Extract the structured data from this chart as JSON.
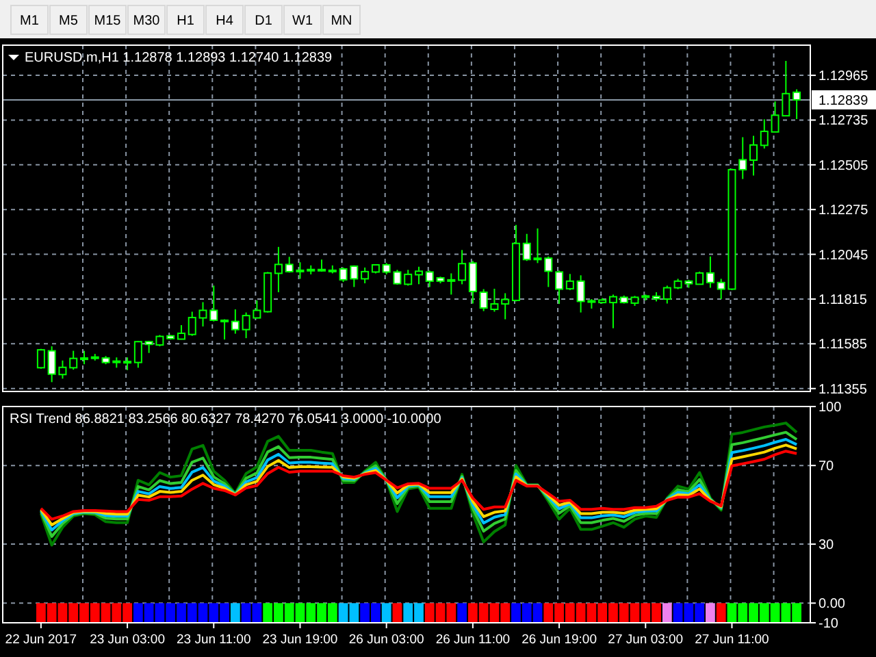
{
  "chart_data": [
    {
      "type": "other",
      "annotations": [
        "M1",
        "M5",
        "M15",
        "M30",
        "H1",
        "H4",
        "D1",
        "W1",
        "MN"
      ]
    },
    {
      "type": "candlestick",
      "title": "EURUSD.m,H1 1.12878 1.12893 1.12740 1.12839",
      "color": "#00ff00",
      "ohlc": [
        [
          1.11462,
          1.11559,
          1.11457,
          1.11554
        ],
        [
          1.11549,
          1.11572,
          1.11388,
          1.11429
        ],
        [
          1.11427,
          1.11499,
          1.11406,
          1.11464
        ],
        [
          1.11462,
          1.11549,
          1.11452,
          1.1151
        ],
        [
          1.11508,
          1.11549,
          1.1148,
          1.11512
        ],
        [
          1.11515,
          1.11533,
          1.11499,
          1.11517
        ],
        [
          1.11512,
          1.11522,
          1.1148,
          1.11489
        ],
        [
          1.11494,
          1.11515,
          1.11462,
          1.11496
        ],
        [
          1.11489,
          1.11515,
          1.1145,
          1.11494
        ],
        [
          1.11489,
          1.116,
          1.11462,
          1.11596
        ],
        [
          1.11596,
          1.116,
          1.11538,
          1.11582
        ],
        [
          1.11579,
          1.1163,
          1.11572,
          1.11623
        ],
        [
          1.11626,
          1.1163,
          1.11607,
          1.11612
        ],
        [
          1.11609,
          1.11681,
          1.11607,
          1.11639
        ],
        [
          1.11633,
          1.1175,
          1.11626,
          1.1172
        ],
        [
          1.11718,
          1.11799,
          1.11674,
          1.11757
        ],
        [
          1.11757,
          1.11884,
          1.117,
          1.11706
        ],
        [
          1.11706,
          1.11711,
          1.11607,
          1.11702
        ],
        [
          1.117,
          1.11762,
          1.11637,
          1.11658
        ],
        [
          1.11658,
          1.11746,
          1.11614,
          1.1173
        ],
        [
          1.11718,
          1.11808,
          1.11716,
          1.11757
        ],
        [
          1.1175,
          1.11954,
          1.11746,
          1.11949
        ],
        [
          1.11947,
          1.12083,
          1.1185,
          1.11993
        ],
        [
          1.11993,
          1.12032,
          1.11951,
          1.11956
        ],
        [
          1.11963,
          1.12004,
          1.11919,
          1.11958
        ],
        [
          1.11965,
          1.11988,
          1.11942,
          1.11967
        ],
        [
          1.11963,
          1.12018,
          1.11956,
          1.11967
        ],
        [
          1.11961,
          1.11988,
          1.11947,
          1.11963
        ],
        [
          1.1197,
          1.11977,
          1.11903,
          1.11914
        ],
        [
          1.11984,
          1.11988,
          1.11877,
          1.11919
        ],
        [
          1.11919,
          1.11977,
          1.11896,
          1.11956
        ],
        [
          1.11954,
          1.11993,
          1.11947,
          1.11991
        ],
        [
          1.11991,
          1.12,
          1.11942,
          1.11954
        ],
        [
          1.11954,
          1.11965,
          1.11889,
          1.11894
        ],
        [
          1.11891,
          1.11965,
          1.11884,
          1.11942
        ],
        [
          1.1194,
          1.11981,
          1.11891,
          1.11958
        ],
        [
          1.11954,
          1.11961,
          1.11877,
          1.11907
        ],
        [
          1.11924,
          1.1193,
          1.11896,
          1.11907
        ],
        [
          1.11914,
          1.11947,
          1.11838,
          1.1191
        ],
        [
          1.11912,
          1.12067,
          1.11891,
          1.11997
        ],
        [
          1.12,
          1.12011,
          1.11792,
          1.11854
        ],
        [
          1.1185,
          1.11866,
          1.11753,
          1.11769
        ],
        [
          1.11762,
          1.11868,
          1.1175,
          1.1179
        ],
        [
          1.1179,
          1.11845,
          1.11711,
          1.11813
        ],
        [
          1.11808,
          1.12196,
          1.11803,
          1.12101
        ],
        [
          1.12101,
          1.1215,
          1.12011,
          1.12018
        ],
        [
          1.12025,
          1.12178,
          1.12,
          1.12023
        ],
        [
          1.12025,
          1.12034,
          1.11877,
          1.11958
        ],
        [
          1.11954,
          1.11961,
          1.1179,
          1.11866
        ],
        [
          1.11868,
          1.11944,
          1.11861,
          1.11907
        ],
        [
          1.11907,
          1.11937,
          1.11746,
          1.11803
        ],
        [
          1.11806,
          1.11815,
          1.11766,
          1.11801
        ],
        [
          1.11797,
          1.1182,
          1.11792,
          1.1181
        ],
        [
          1.11797,
          1.11838,
          1.11665,
          1.11827
        ],
        [
          1.11824,
          1.11833,
          1.11792,
          1.11797
        ],
        [
          1.11794,
          1.11831,
          1.1178,
          1.11824
        ],
        [
          1.11827,
          1.11838,
          1.11808,
          1.11831
        ],
        [
          1.11829,
          1.1185,
          1.11803,
          1.11817
        ],
        [
          1.11815,
          1.11884,
          1.11792,
          1.11873
        ],
        [
          1.11873,
          1.11919,
          1.11866,
          1.11907
        ],
        [
          1.11907,
          1.11914,
          1.11873,
          1.11894
        ],
        [
          1.11891,
          1.11956,
          1.11889,
          1.11949
        ],
        [
          1.11949,
          1.12034,
          1.11873,
          1.119
        ],
        [
          1.119,
          1.11919,
          1.11815,
          1.11866
        ],
        [
          1.11866,
          1.12485,
          1.11861,
          1.1248
        ],
        [
          1.12531,
          1.12647,
          1.12432,
          1.1248
        ],
        [
          1.12529,
          1.12654,
          1.1245,
          1.12607
        ],
        [
          1.12605,
          1.12739,
          1.12589,
          1.12677
        ],
        [
          1.12674,
          1.12831,
          1.12674,
          1.1276
        ],
        [
          1.12757,
          1.13039,
          1.12757,
          1.12871
        ],
        [
          1.12878,
          1.12893,
          1.1274,
          1.12839
        ]
      ],
      "ylim": [
        1.1134,
        1.1312
      ],
      "yticks": [
        1.11355,
        1.11585,
        1.11815,
        1.12045,
        1.12275,
        1.12505,
        1.12735,
        1.12965
      ],
      "grid": true,
      "tick_labels": "y",
      "ref_lines": [
        {
          "axis": "y",
          "value": 1.12839,
          "label": "1.12839",
          "color": "#8c9aa8"
        }
      ]
    },
    {
      "type": "line",
      "title": "RSI Trend 86.8821 83.2566 80.6327 78.4270 76.0541 3.0000 -10.0000",
      "categories": [
        "22 Jun 2017",
        null,
        null,
        null,
        null,
        null,
        null,
        null,
        "23 Jun 03:00",
        null,
        null,
        null,
        null,
        null,
        null,
        null,
        "23 Jun 11:00",
        null,
        null,
        null,
        null,
        null,
        null,
        null,
        "23 Jun 19:00",
        null,
        null,
        null,
        null,
        null,
        null,
        null,
        "26 Jun 03:00",
        null,
        null,
        null,
        null,
        null,
        null,
        null,
        "26 Jun 11:00",
        null,
        null,
        null,
        null,
        null,
        null,
        null,
        "26 Jun 19:00",
        null,
        null,
        null,
        null,
        null,
        null,
        null,
        "27 Jun 03:00",
        null,
        null,
        null,
        null,
        null,
        null,
        null,
        "27 Jun 11:00",
        null,
        null,
        null,
        null,
        null,
        null
      ],
      "ylim": [
        -10,
        100
      ],
      "yticks": [
        100,
        70,
        30,
        {
          "value": 0,
          "label": "0.00"
        },
        -10
      ],
      "grid": true,
      "series": [
        {
          "type": "bar",
          "values": [
            -10,
            -10,
            -10,
            -10,
            -10,
            -10,
            -10,
            -10,
            -10,
            -10,
            -10,
            -10,
            -10,
            -10,
            -10,
            -10,
            -10,
            -10,
            -10,
            -10,
            -10,
            -10,
            -10,
            -10,
            -10,
            -10,
            -10,
            -10,
            -10,
            -10,
            -10,
            -10,
            -10,
            -10,
            -10,
            -10,
            -10,
            -10,
            -10,
            -10,
            -10,
            -10,
            -10,
            -10,
            -10,
            -10,
            -10,
            -10,
            -10,
            -10,
            -10,
            -10,
            -10,
            -10,
            -10,
            -10,
            -10,
            -10,
            -10,
            -10,
            -10,
            -10,
            -10,
            -10,
            -10,
            -10,
            -10,
            -10,
            -10,
            -10,
            -10
          ],
          "colors": [
            "#ff0000",
            "#ff0000",
            "#ff0000",
            "#ff0000",
            "#ff0000",
            "#ff0000",
            "#ff0000",
            "#ff0000",
            "#ff0000",
            "#0000ff",
            "#0000ff",
            "#0000ff",
            "#0000ff",
            "#0000ff",
            "#0000ff",
            "#0000ff",
            "#0000ff",
            "#0000ff",
            "#00bfff",
            "#0000ff",
            "#0000ff",
            "#00ff00",
            "#00ff00",
            "#00ff00",
            "#00ff00",
            "#00ff00",
            "#00ff00",
            "#00ff00",
            "#00bfff",
            "#00bfff",
            "#0000ff",
            "#0000ff",
            "#00bfff",
            "#ff0000",
            "#00bfff",
            "#00bfff",
            "#ff0000",
            "#ff0000",
            "#ff0000",
            "#0000ff",
            "#ff0000",
            "#ff0000",
            "#ff0000",
            "#ff0000",
            "#0000ff",
            "#0000ff",
            "#0000ff",
            "#ff0000",
            "#ff0000",
            "#ff0000",
            "#ff0000",
            "#ff0000",
            "#ff0000",
            "#ff0000",
            "#ff0000",
            "#ff0000",
            "#ff0000",
            "#ff0000",
            "#ee82ee",
            "#0000ff",
            "#0000ff",
            "#0000ff",
            "#ee82ee",
            "#ff0000",
            "#00ff00",
            "#00ff00",
            "#00ff00",
            "#00ff00",
            "#00ff00",
            "#00ff00",
            "#00ff00"
          ]
        },
        {
          "color": "#008000",
          "values": [
            45.5,
            29.5,
            38.6,
            44.3,
            45.5,
            45.0,
            41.4,
            40.9,
            40.9,
            62.5,
            60.2,
            66.4,
            64.1,
            64.8,
            78.4,
            80.2,
            67.1,
            62.5,
            55.7,
            65.9,
            69.3,
            82.3,
            84.8,
            77.7,
            77.7,
            77.7,
            76.8,
            76.1,
            61.4,
            61.4,
            67.1,
            71.6,
            62.5,
            46.6,
            58.0,
            59.1,
            48.2,
            48.2,
            48.2,
            65.5,
            45.5,
            31.1,
            36.4,
            39.8,
            70.0,
            60.2,
            60.2,
            51.8,
            42.7,
            48.2,
            37.5,
            37.5,
            39.1,
            40.9,
            38.6,
            42.7,
            44.3,
            43.6,
            53.4,
            59.5,
            58.0,
            66.4,
            53.4,
            47.3,
            85.9,
            86.8,
            88.2,
            89.6,
            90.5,
            91.6,
            86.8821
          ]
        },
        {
          "color": "#32cd32",
          "values": [
            46.4,
            33.9,
            40.5,
            45.1,
            46.0,
            45.7,
            43.2,
            42.8,
            42.8,
            59.3,
            57.6,
            62.3,
            60.8,
            61.4,
            71.7,
            73.8,
            64.2,
            60.8,
            55.5,
            63.5,
            66.2,
            76.9,
            79.6,
            74.0,
            74.2,
            74.2,
            73.6,
            73.1,
            62.5,
            62.3,
            66.6,
            69.9,
            62.5,
            50.6,
            58.9,
            59.7,
            51.6,
            51.6,
            51.6,
            64.5,
            48.1,
            36.6,
            40.5,
            42.8,
            67.5,
            60.0,
            60.0,
            53.1,
            45.7,
            49.6,
            40.9,
            40.9,
            42.1,
            43.1,
            41.6,
            44.6,
            45.7,
            45.5,
            53.0,
            57.7,
            56.6,
            62.9,
            52.9,
            48.0,
            80.6,
            81.6,
            82.9,
            84.2,
            85.6,
            86.9,
            83.2566
          ]
        },
        {
          "color": "#00bfff",
          "values": [
            47.1,
            37.2,
            41.9,
            45.6,
            46.4,
            46.2,
            44.5,
            44.2,
            44.2,
            56.8,
            55.6,
            59.3,
            58.3,
            58.8,
            66.6,
            69.0,
            62.1,
            59.5,
            55.3,
            61.7,
            63.8,
            72.8,
            75.7,
            71.3,
            71.6,
            71.6,
            71.2,
            70.9,
            63.4,
            63.0,
            66.2,
            68.6,
            62.5,
            53.6,
            59.6,
            60.1,
            54.1,
            54.1,
            54.1,
            63.8,
            50.1,
            40.7,
            43.7,
            45.1,
            65.7,
            59.8,
            59.8,
            54.1,
            48.0,
            50.6,
            43.4,
            43.4,
            44.4,
            44.8,
            43.9,
            46.1,
            46.8,
            46.9,
            52.8,
            56.3,
            55.6,
            60.2,
            52.5,
            48.6,
            76.6,
            77.6,
            78.8,
            80.1,
            81.8,
            83.3,
            80.6327
          ]
        },
        {
          "color": "#ffd700",
          "values": [
            47.6,
            39.8,
            43.0,
            46.1,
            46.7,
            46.6,
            45.6,
            45.3,
            45.3,
            54.9,
            54.0,
            56.8,
            56.3,
            56.8,
            62.5,
            65.1,
            60.3,
            58.4,
            55.2,
            60.2,
            61.9,
            69.5,
            72.6,
            69.0,
            69.4,
            69.4,
            69.2,
            69.1,
            64.1,
            63.5,
            65.9,
            67.5,
            62.5,
            56.0,
            60.1,
            60.5,
            56.2,
            56.2,
            56.2,
            63.2,
            51.7,
            44.0,
            46.2,
            46.9,
            64.2,
            59.7,
            59.7,
            54.8,
            49.8,
            51.4,
            45.5,
            45.5,
            46.2,
            46.2,
            45.7,
            47.3,
            47.7,
            48.0,
            52.5,
            55.1,
            54.8,
            58.1,
            52.2,
            49.0,
            73.3,
            74.4,
            75.6,
            76.8,
            78.8,
            80.4,
            78.427
          ]
        },
        {
          "color": "#ff0000",
          "values": [
            48.2,
            42.7,
            44.3,
            46.6,
            47.1,
            47.1,
            46.8,
            46.6,
            46.6,
            52.7,
            52.3,
            54.1,
            54.1,
            54.5,
            58.0,
            60.9,
            58.4,
            57.3,
            55.0,
            58.6,
            59.8,
            65.9,
            69.1,
            66.6,
            67.1,
            67.1,
            67.1,
            67.1,
            64.8,
            64.1,
            65.5,
            66.4,
            62.5,
            58.6,
            60.7,
            60.9,
            58.4,
            58.4,
            58.4,
            62.5,
            53.4,
            47.7,
            48.9,
            48.9,
            62.5,
            59.5,
            59.5,
            55.7,
            51.8,
            52.3,
            47.7,
            47.7,
            48.2,
            47.7,
            47.7,
            48.6,
            48.6,
            49.3,
            52.3,
            53.9,
            53.9,
            55.7,
            51.8,
            49.5,
            69.8,
            70.9,
            72.0,
            73.2,
            75.5,
            77.3,
            76.0541
          ]
        }
      ]
    }
  ]
}
